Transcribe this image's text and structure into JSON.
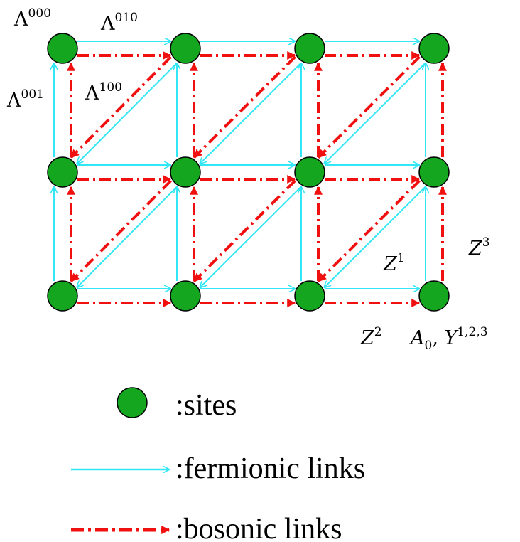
{
  "colors": {
    "site_fill": "#13a61e",
    "site_stroke": "#000000",
    "fermionic": "#33e6f5",
    "bosonic": "#f01010"
  },
  "lattice": {
    "columns": 4,
    "rows": 3
  },
  "labels": {
    "lambda_000": {
      "base": "Λ",
      "sup": "000"
    },
    "lambda_010": {
      "base": "Λ",
      "sup": "010"
    },
    "lambda_001": {
      "base": "Λ",
      "sup": "001"
    },
    "lambda_100": {
      "base": "Λ",
      "sup": "100"
    },
    "z1": {
      "base": "Z",
      "sup": "1"
    },
    "z2": {
      "base": "Z",
      "sup": "2"
    },
    "z3": {
      "base": "Z",
      "sup": "3"
    },
    "a0y": {
      "a": "A",
      "a_sub": "0",
      "sep": ", ",
      "y": "Y",
      "y_sup": "1,2,3"
    }
  },
  "legend": {
    "sites": ":sites",
    "fermionic": ":fermionic links",
    "bosonic": ":bosonic links"
  }
}
